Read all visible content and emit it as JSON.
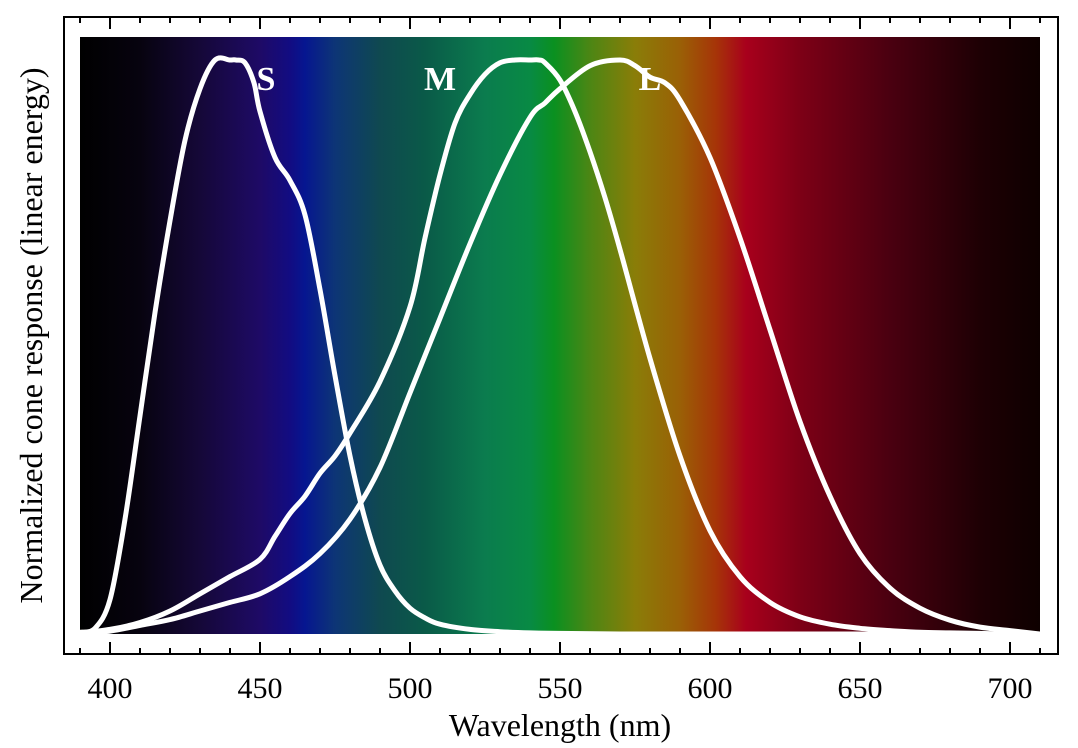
{
  "chart_data": {
    "type": "line",
    "title": "",
    "xlabel": "Wavelength (nm)",
    "ylabel": "Normalized cone response (linear energy)",
    "xlim": [
      390,
      710
    ],
    "ylim": [
      0,
      1.04
    ],
    "xticks": [
      400,
      450,
      500,
      550,
      600,
      650,
      700
    ],
    "yticks": [],
    "grid": false,
    "legend": "none",
    "background": "visible-spectrum gradient",
    "gradient_stops": [
      {
        "wl": 390,
        "color": "#000000"
      },
      {
        "wl": 410,
        "color": "#07030f"
      },
      {
        "wl": 430,
        "color": "#150838"
      },
      {
        "wl": 450,
        "color": "#1e0a66"
      },
      {
        "wl": 460,
        "color": "#120c82"
      },
      {
        "wl": 465,
        "color": "#061690"
      },
      {
        "wl": 475,
        "color": "#0d3576"
      },
      {
        "wl": 490,
        "color": "#0f4950"
      },
      {
        "wl": 505,
        "color": "#0a5a48"
      },
      {
        "wl": 525,
        "color": "#0b7c4e"
      },
      {
        "wl": 540,
        "color": "#088a44"
      },
      {
        "wl": 548,
        "color": "#0a9020"
      },
      {
        "wl": 560,
        "color": "#4c8614"
      },
      {
        "wl": 575,
        "color": "#8a7d08"
      },
      {
        "wl": 590,
        "color": "#9a6006"
      },
      {
        "wl": 602,
        "color": "#a63408"
      },
      {
        "wl": 612,
        "color": "#a8001c"
      },
      {
        "wl": 630,
        "color": "#7d0016"
      },
      {
        "wl": 660,
        "color": "#4a0010"
      },
      {
        "wl": 690,
        "color": "#1e0004"
      },
      {
        "wl": 710,
        "color": "#0e0000"
      }
    ],
    "series": [
      {
        "name": "S",
        "color": "#ffffff",
        "x": [
          390,
          395,
          400,
          405,
          410,
          415,
          420,
          425,
          430,
          435,
          440,
          442,
          445,
          448,
          450,
          455,
          460,
          465,
          470,
          475,
          480,
          485,
          490,
          495,
          500,
          505,
          510,
          520,
          530,
          540,
          550,
          570,
          600,
          650,
          700,
          710
        ],
        "y": [
          0.003,
          0.01,
          0.06,
          0.2,
          0.38,
          0.56,
          0.72,
          0.86,
          0.95,
          1.0,
          1.0,
          1.0,
          0.995,
          0.96,
          0.91,
          0.83,
          0.79,
          0.73,
          0.6,
          0.45,
          0.31,
          0.2,
          0.12,
          0.075,
          0.045,
          0.028,
          0.017,
          0.008,
          0.004,
          0.002,
          0.001,
          0.0,
          0.0,
          0.0,
          0.0,
          0.0
        ]
      },
      {
        "name": "M",
        "color": "#ffffff",
        "x": [
          390,
          400,
          410,
          420,
          430,
          440,
          450,
          455,
          460,
          465,
          470,
          475,
          480,
          490,
          500,
          505,
          510,
          515,
          520,
          525,
          530,
          535,
          540,
          543,
          545,
          550,
          555,
          560,
          565,
          570,
          580,
          590,
          600,
          610,
          620,
          630,
          640,
          650,
          660,
          670,
          680,
          690,
          700,
          710
        ],
        "y": [
          0.002,
          0.008,
          0.02,
          0.04,
          0.07,
          0.1,
          0.13,
          0.17,
          0.21,
          0.24,
          0.28,
          0.31,
          0.35,
          0.44,
          0.57,
          0.69,
          0.8,
          0.89,
          0.94,
          0.975,
          0.995,
          1.0,
          1.0,
          1.0,
          0.995,
          0.965,
          0.91,
          0.84,
          0.76,
          0.67,
          0.48,
          0.31,
          0.18,
          0.1,
          0.055,
          0.03,
          0.017,
          0.01,
          0.006,
          0.003,
          0.002,
          0.001,
          0.0,
          0.0
        ]
      },
      {
        "name": "L",
        "color": "#ffffff",
        "x": [
          390,
          400,
          410,
          420,
          430,
          440,
          450,
          460,
          470,
          480,
          490,
          500,
          510,
          520,
          530,
          540,
          545,
          550,
          560,
          570,
          575,
          580,
          585,
          590,
          600,
          610,
          620,
          630,
          640,
          650,
          660,
          670,
          680,
          690,
          700,
          710
        ],
        "y": [
          0.001,
          0.005,
          0.015,
          0.025,
          0.04,
          0.055,
          0.07,
          0.1,
          0.14,
          0.2,
          0.29,
          0.42,
          0.55,
          0.68,
          0.8,
          0.9,
          0.925,
          0.95,
          0.99,
          1.0,
          0.99,
          0.97,
          0.96,
          0.93,
          0.83,
          0.69,
          0.53,
          0.37,
          0.24,
          0.14,
          0.08,
          0.045,
          0.024,
          0.012,
          0.006,
          0.0
        ]
      }
    ]
  }
}
